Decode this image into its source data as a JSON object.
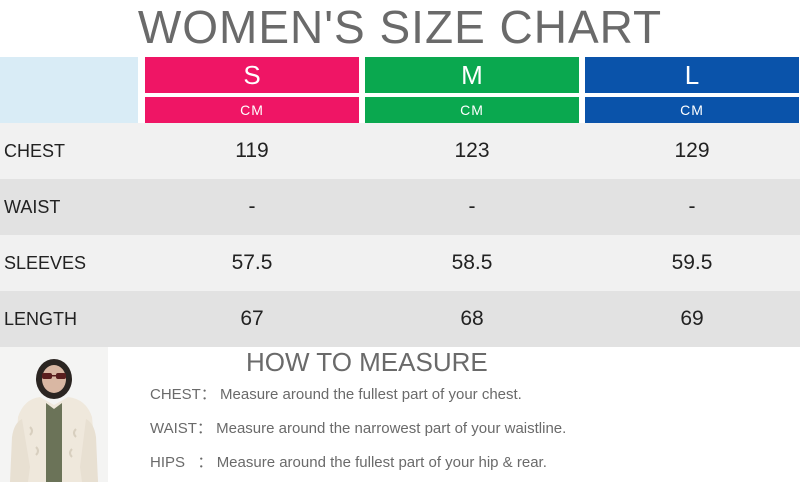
{
  "title": "WOMEN'S SIZE CHART",
  "sizes": [
    {
      "name": "S",
      "unit": "CM",
      "color": "#ef1565"
    },
    {
      "name": "M",
      "unit": "CM",
      "color": "#0aa84f"
    },
    {
      "name": "L",
      "unit": "CM",
      "color": "#0a53aa"
    }
  ],
  "rows": [
    {
      "label": "CHEST",
      "values": [
        "119",
        "123",
        "129"
      ]
    },
    {
      "label": "WAIST",
      "values": [
        "-",
        "-",
        "-"
      ]
    },
    {
      "label": "SLEEVES",
      "values": [
        "57.5",
        "58.5",
        "59.5"
      ]
    },
    {
      "label": "LENGTH",
      "values": [
        "67",
        "68",
        "69"
      ]
    }
  ],
  "how_to_measure": {
    "title": "HOW TO MEASURE",
    "items": [
      {
        "key": "CHEST：",
        "text": "Measure around the fullest part of your chest."
      },
      {
        "key": "WAIST：",
        "text": "Measure around the narrowest part of your waistline."
      },
      {
        "key": "HIPS   ：",
        "text": "Measure around the fullest part of your hip & rear."
      }
    ]
  }
}
